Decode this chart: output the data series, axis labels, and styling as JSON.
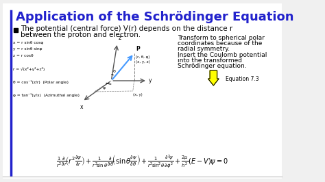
{
  "bg_color": "#f0f0f0",
  "slide_bg": "#ffffff",
  "title": "Application of the Schrödinger Equation",
  "title_color": "#2222cc",
  "title_fontsize": 13,
  "border_color": "#2222cc",
  "bullet_text_line1": "The potential (central force) V(r) depends on the distance r",
  "bullet_text_line2": "between the proton and electron.",
  "bullet_color": "#000000",
  "body_fontsize": 7.5,
  "coords_text": [
    "x = r sinθ cosφ",
    "y = r sinθ sinφ",
    "z = r cosθ",
    "",
    "r = √(x²+y²+z²)",
    "",
    "θ = cos⁻¹(z/r)  (Polar angle)",
    "",
    "φ = tan⁻¹(y/x)  (Azimuthal angle)"
  ],
  "right_text_line1": "Transform to spherical polar",
  "right_text_line2": "coordinates because of the",
  "right_text_line3": "radial symmetry.",
  "right_text_line4": "Insert the Coulomb potential",
  "right_text_line5": "into the transformed",
  "right_text_line6": "Schrödinger equation.",
  "eq_label": "Equation 7.3",
  "arrow_color": "#ffff00",
  "axis_color": "#555555",
  "diagram_line_color": "#888888",
  "blue_line_color": "#4499ff"
}
